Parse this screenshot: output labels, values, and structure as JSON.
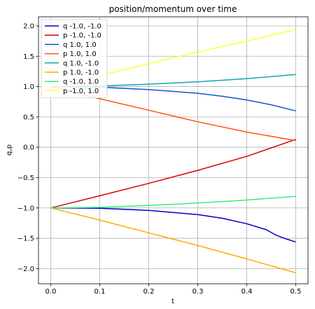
{
  "chart_data": {
    "type": "line",
    "title": "position/momentum over time",
    "xlabel": "t",
    "ylabel": "q,p",
    "xlim": [
      -0.025,
      0.525
    ],
    "ylim": [
      -2.25,
      2.15
    ],
    "xticks": [
      0.0,
      0.1,
      0.2,
      0.3,
      0.4,
      0.5
    ],
    "xtick_labels": [
      "0.0",
      "0.1",
      "0.2",
      "0.3",
      "0.4",
      "0.5"
    ],
    "yticks": [
      -2.0,
      -1.5,
      -1.0,
      -0.5,
      0.0,
      0.5,
      1.0,
      1.5,
      2.0
    ],
    "ytick_labels": [
      "−2.0",
      "−1.5",
      "−1.0",
      "−0.5",
      "0.0",
      "0.5",
      "1.0",
      "1.5",
      "2.0"
    ],
    "grid": true,
    "legend_position": "upper-left",
    "series": [
      {
        "name": "q -1.0, -1.0",
        "color": "#0000cc",
        "x": [
          0.0,
          0.1,
          0.2,
          0.3,
          0.35,
          0.4,
          0.44,
          0.46,
          0.48,
          0.5
        ],
        "y": [
          -1.0,
          -1.005,
          -1.04,
          -1.11,
          -1.17,
          -1.26,
          -1.36,
          -1.45,
          -1.51,
          -1.56
        ]
      },
      {
        "name": "p -1.0, -1.0",
        "color": "#dd0000",
        "x": [
          0.0,
          0.1,
          0.2,
          0.3,
          0.4,
          0.5
        ],
        "y": [
          -1.0,
          -0.8,
          -0.595,
          -0.38,
          -0.15,
          0.13
        ]
      },
      {
        "name": "q 1.0, 1.0",
        "color": "#1155cc",
        "x": [
          0.0,
          0.1,
          0.2,
          0.3,
          0.35,
          0.4,
          0.45,
          0.5
        ],
        "y": [
          1.0,
          0.99,
          0.95,
          0.89,
          0.84,
          0.78,
          0.7,
          0.6
        ]
      },
      {
        "name": "p 1.0, 1.0",
        "color": "#ff5511",
        "x": [
          0.0,
          0.1,
          0.2,
          0.3,
          0.4,
          0.5
        ],
        "y": [
          1.0,
          0.8,
          0.61,
          0.42,
          0.25,
          0.11
        ]
      },
      {
        "name": "q 1.0, -1.0",
        "color": "#11aaaa",
        "x": [
          0.0,
          0.1,
          0.2,
          0.3,
          0.4,
          0.5
        ],
        "y": [
          1.0,
          1.01,
          1.04,
          1.08,
          1.13,
          1.2
        ]
      },
      {
        "name": "p 1.0, -1.0",
        "color": "#ffaa00",
        "x": [
          0.0,
          0.1,
          0.2,
          0.3,
          0.4,
          0.5
        ],
        "y": [
          -1.0,
          -1.2,
          -1.41,
          -1.62,
          -1.84,
          -2.07
        ]
      },
      {
        "name": "q -1.0, 1.0",
        "color": "#33ee88",
        "x": [
          0.0,
          0.1,
          0.2,
          0.3,
          0.4,
          0.5
        ],
        "y": [
          -1.0,
          -0.99,
          -0.96,
          -0.92,
          -0.87,
          -0.81
        ]
      },
      {
        "name": "p -1.0, 1.0",
        "color": "#ffff33",
        "x": [
          0.0,
          0.1,
          0.2,
          0.3,
          0.4,
          0.5
        ],
        "y": [
          1.0,
          1.18,
          1.38,
          1.57,
          1.75,
          1.94
        ]
      }
    ]
  }
}
